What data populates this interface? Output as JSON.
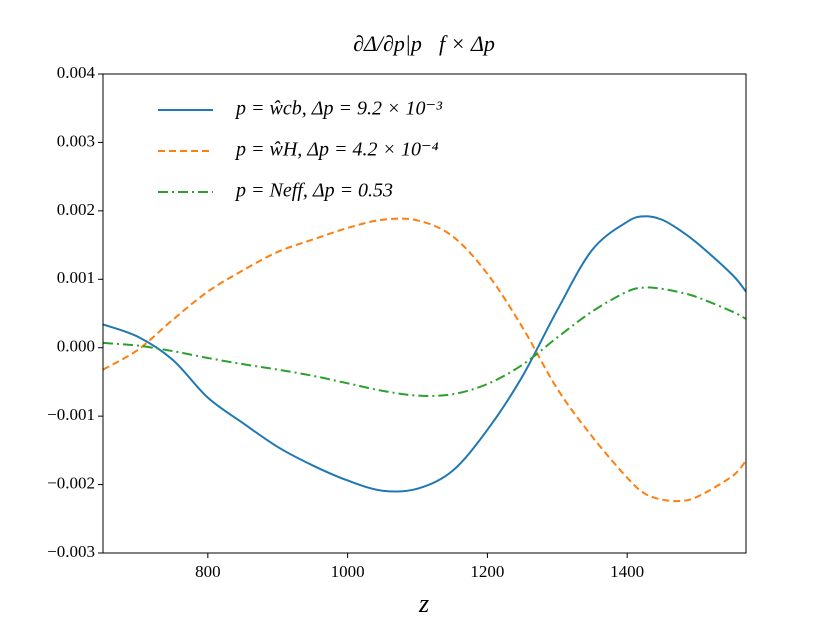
{
  "chart_data": {
    "type": "line",
    "title": "∂Δ/∂p|p⃗f × Δp",
    "xlabel": "z",
    "x": [
      650,
      700,
      750,
      800,
      850,
      900,
      950,
      1000,
      1050,
      1100,
      1150,
      1200,
      1250,
      1300,
      1350,
      1400,
      1425,
      1450,
      1475,
      1500,
      1550,
      1570
    ],
    "series": [
      {
        "name": "p = ŵcb,  Δp = 9.2 × 10⁻³",
        "color": "#1f77b4",
        "dash": "solid",
        "values": [
          0.00034,
          0.00016,
          -0.00018,
          -0.00073,
          -0.0011,
          -0.00145,
          -0.00172,
          -0.00194,
          -0.00209,
          -0.00206,
          -0.0018,
          -0.0012,
          -0.00042,
          0.00055,
          0.00143,
          0.00184,
          0.00192,
          0.00187,
          0.00172,
          0.00153,
          0.00107,
          0.00082
        ]
      },
      {
        "name": "p = ŵH,  Δp = 4.2 × 10⁻⁴",
        "color": "#ff7f0e",
        "dash": "dashed",
        "values": [
          -0.00032,
          -3e-05,
          0.00041,
          0.00082,
          0.00113,
          0.0014,
          0.00158,
          0.00175,
          0.00187,
          0.00186,
          0.00163,
          0.00108,
          0.0003,
          -0.0006,
          -0.0013,
          -0.0019,
          -0.00213,
          -0.00222,
          -0.00224,
          -0.00218,
          -0.00188,
          -0.00165
        ]
      },
      {
        "name": "p = Neff,  Δp = 0.53",
        "color": "#2ca02c",
        "dash": "dashdot",
        "values": [
          7e-05,
          3e-05,
          -5e-05,
          -0.00015,
          -0.00024,
          -0.00032,
          -0.00041,
          -0.00052,
          -0.00063,
          -0.0007,
          -0.00068,
          -0.00053,
          -0.00025,
          0.00015,
          0.00053,
          0.00082,
          0.00088,
          0.00086,
          0.00081,
          0.00074,
          0.00053,
          0.00042
        ]
      }
    ],
    "xlim": [
      650,
      1570
    ],
    "ylim": [
      -0.003,
      0.004
    ],
    "xticks": [
      800,
      1000,
      1200,
      1400
    ],
    "yticks": [
      {
        "value": -0.003,
        "label": "−0.003"
      },
      {
        "value": -0.002,
        "label": "−0.002"
      },
      {
        "value": -0.001,
        "label": "−0.001"
      },
      {
        "value": 0,
        "label": "0.000"
      },
      {
        "value": 0.001,
        "label": "0.001"
      },
      {
        "value": 0.002,
        "label": "0.002"
      },
      {
        "value": 0.003,
        "label": "0.003"
      },
      {
        "value": 0.004,
        "label": "0.004"
      }
    ],
    "grid": false,
    "legend": "upper left"
  }
}
